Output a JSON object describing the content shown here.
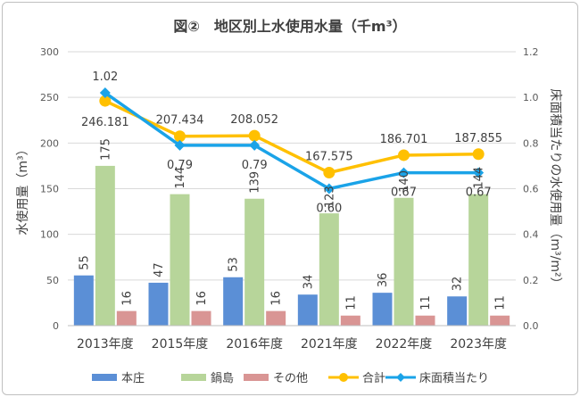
{
  "chart_data": {
    "type": "bar",
    "title": "図②　地区別上水使用水量（千m³）",
    "ylabel": "水使用量（m³）",
    "y2label": "床面積当たりの水使用量（m³/m²）",
    "categories": [
      "2013年度",
      "2015年度",
      "2016年度",
      "2021年度",
      "2022年度",
      "2023年度"
    ],
    "ylim": [
      0,
      300
    ],
    "y_ticks": [
      "0",
      "50",
      "100",
      "150",
      "200",
      "250",
      "300"
    ],
    "y2lim": [
      0,
      1.2
    ],
    "y2_ticks": [
      "0.0",
      "0.2",
      "0.4",
      "0.6",
      "0.8",
      "1.0",
      "1.2"
    ],
    "grid": true,
    "legend_position": "bottom",
    "series": [
      {
        "name": "本庄",
        "type": "bar",
        "axis": "left",
        "color": "#5b8fd6",
        "values": [
          55,
          47,
          53,
          34,
          36,
          32
        ],
        "labels": [
          "55",
          "47",
          "53",
          "34",
          "36",
          "32"
        ]
      },
      {
        "name": "鍋島",
        "type": "bar",
        "axis": "left",
        "color": "#b7d59a",
        "values": [
          175,
          144,
          139,
          123,
          140,
          144
        ],
        "labels": [
          "175",
          "144",
          "139",
          "123",
          "140",
          "144"
        ]
      },
      {
        "name": "その他",
        "type": "bar",
        "axis": "left",
        "color": "#d99594",
        "values": [
          16,
          16,
          16,
          11,
          11,
          11
        ],
        "labels": [
          "16",
          "16",
          "16",
          "11",
          "11",
          "11"
        ]
      },
      {
        "name": "合計",
        "type": "line",
        "axis": "left",
        "color": "#ffc000",
        "values": [
          246.181,
          207.434,
          208.052,
          167.575,
          186.701,
          187.855
        ],
        "labels": [
          "246.181",
          "207.434",
          "208.052",
          "167.575",
          "186.701",
          "187.855"
        ]
      },
      {
        "name": "床面積当たり",
        "type": "line",
        "axis": "right",
        "color": "#1aa3e8",
        "values": [
          1.02,
          0.79,
          0.79,
          0.6,
          0.67,
          0.67
        ],
        "labels": [
          "1.02",
          "0.79",
          "0.79",
          "0.60",
          "0.67",
          "0.67"
        ]
      }
    ]
  }
}
